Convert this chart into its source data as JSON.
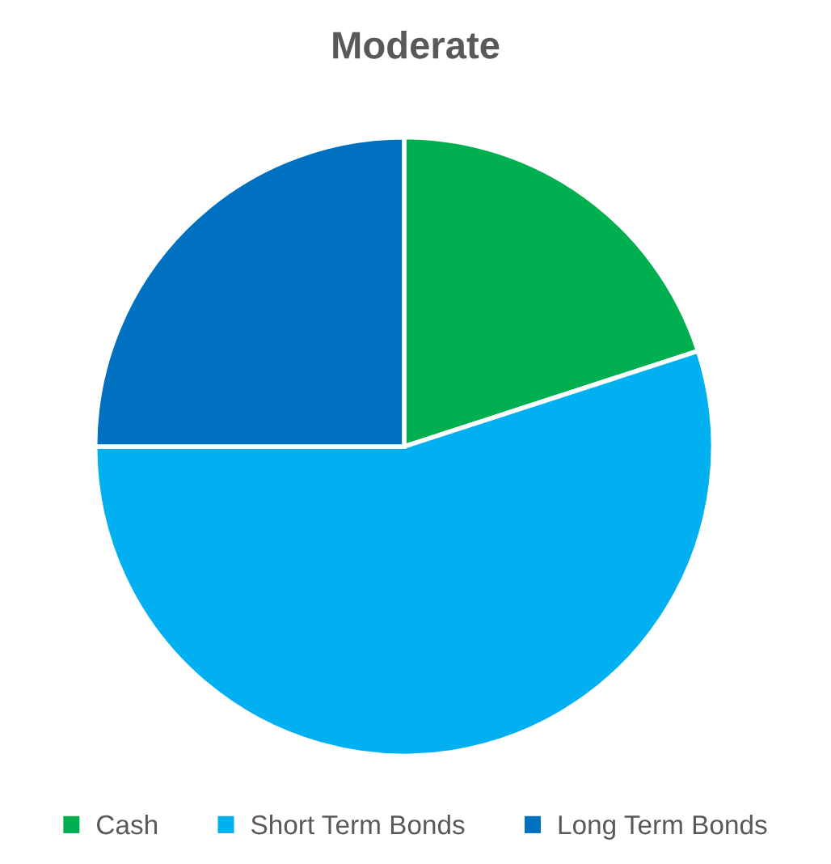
{
  "chart_data": {
    "type": "pie",
    "title": "Moderate",
    "categories": [
      "Cash",
      "Short Term Bonds",
      "Long Term Bonds"
    ],
    "values": [
      20,
      55,
      25
    ],
    "colors": [
      "#00b050",
      "#00b0f0",
      "#0070c0"
    ],
    "legend": "bottom"
  }
}
